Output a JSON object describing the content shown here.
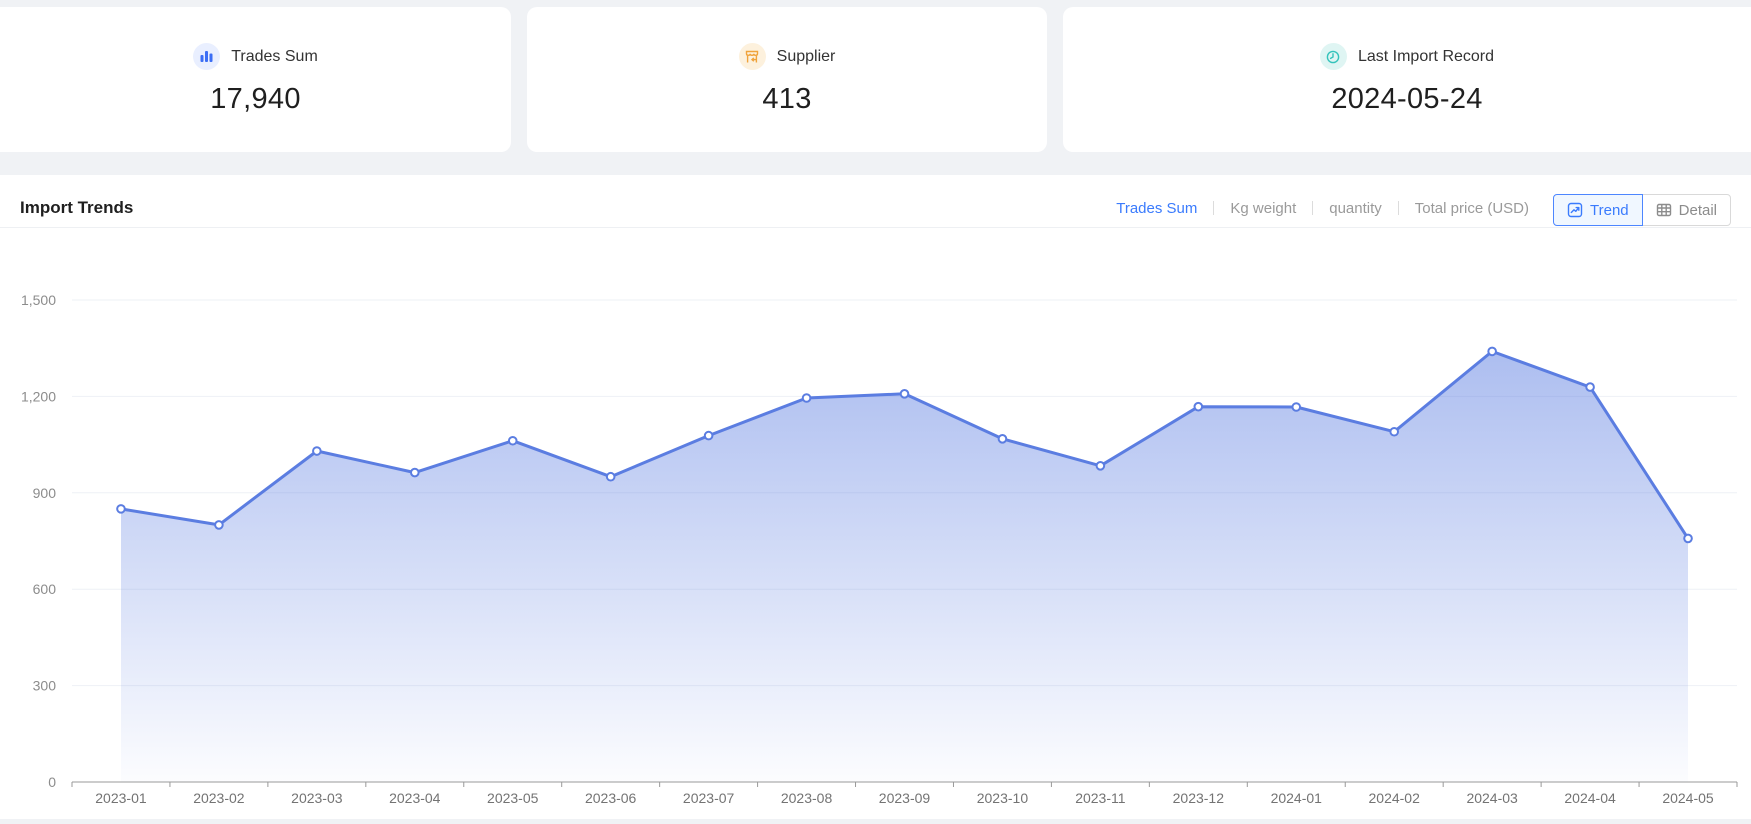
{
  "summary_cards": [
    {
      "label": "Trades Sum",
      "value": "17,940",
      "icon": "bar-chart-icon",
      "icon_color": "#3b6ef5",
      "icon_bg": "#e9efff"
    },
    {
      "label": "Supplier",
      "value": "413",
      "icon": "storefront-icon",
      "icon_color": "#f0a33c",
      "icon_bg": "#fdf1dd"
    },
    {
      "label": "Last Import Record",
      "value": "2024-05-24",
      "icon": "clock-icon",
      "icon_color": "#35c3bb",
      "icon_bg": "#dff5f3"
    }
  ],
  "trends": {
    "title": "Import Trends",
    "metric_tabs": [
      {
        "label": "Trades Sum",
        "active": true
      },
      {
        "label": "Kg weight",
        "active": false
      },
      {
        "label": "quantity",
        "active": false
      },
      {
        "label": "Total price (USD)",
        "active": false
      }
    ],
    "view_toggle": [
      {
        "label": "Trend",
        "icon": "trend-icon",
        "active": true
      },
      {
        "label": "Detail",
        "icon": "table-icon",
        "active": false
      }
    ]
  },
  "chart_data": {
    "type": "area",
    "title": "Import Trends",
    "series_name": "Trades Sum",
    "x": [
      "2023-01",
      "2023-02",
      "2023-03",
      "2023-04",
      "2023-05",
      "2023-06",
      "2023-07",
      "2023-08",
      "2023-09",
      "2023-10",
      "2023-11",
      "2023-12",
      "2024-01",
      "2024-02",
      "2024-03",
      "2024-04",
      "2024-05"
    ],
    "series": [
      {
        "name": "Trades Sum",
        "values": [
          850,
          800,
          1030,
          963,
          1062,
          950,
          1078,
          1195,
          1208,
          1068,
          984,
          1168,
          1167,
          1090,
          1340,
          1229,
          758
        ]
      }
    ],
    "ylim": [
      0,
      1500
    ],
    "yticks": [
      0,
      300,
      600,
      900,
      1200,
      1500
    ],
    "ytick_labels": [
      "0",
      "300",
      "600",
      "900",
      "1,200",
      "1,500"
    ],
    "grid": true,
    "legend": "none",
    "line_color": "#5b7de1",
    "marker_fill": "#ffffff",
    "area_top_color": "rgba(91,125,225,0.50)",
    "area_bottom_color": "rgba(91,125,225,0.02)",
    "grid_color": "#eef1f6",
    "axis_color": "#999999",
    "ylabel_color": "#8c8c8c",
    "xlabel_color": "#737373"
  }
}
